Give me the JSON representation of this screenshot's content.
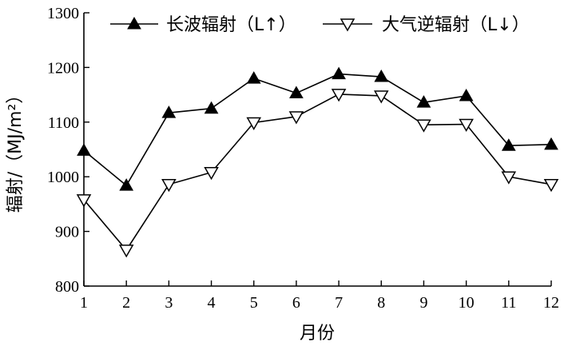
{
  "chart_data": {
    "type": "line",
    "xlabel": "月份",
    "ylabel": "辐射/（MJ/m²）",
    "x": [
      1,
      2,
      3,
      4,
      5,
      6,
      7,
      8,
      9,
      10,
      11,
      12
    ],
    "xlim": [
      1,
      12
    ],
    "ylim": [
      800,
      1300
    ],
    "yticks": [
      800,
      900,
      1000,
      1100,
      1200,
      1300
    ],
    "grid": false,
    "legend": "top",
    "series": [
      {
        "name": "长波辐射（L↑）",
        "marker": "filled-triangle-up",
        "color": "#000000",
        "values": [
          1048,
          984,
          1117,
          1125,
          1180,
          1153,
          1188,
          1183,
          1136,
          1148,
          1057,
          1059
        ]
      },
      {
        "name": "大气逆辐射（L↓）",
        "marker": "hollow-triangle-down",
        "color": "#000000",
        "values": [
          958,
          866,
          986,
          1008,
          1099,
          1110,
          1151,
          1148,
          1095,
          1096,
          1000,
          986
        ]
      }
    ]
  }
}
